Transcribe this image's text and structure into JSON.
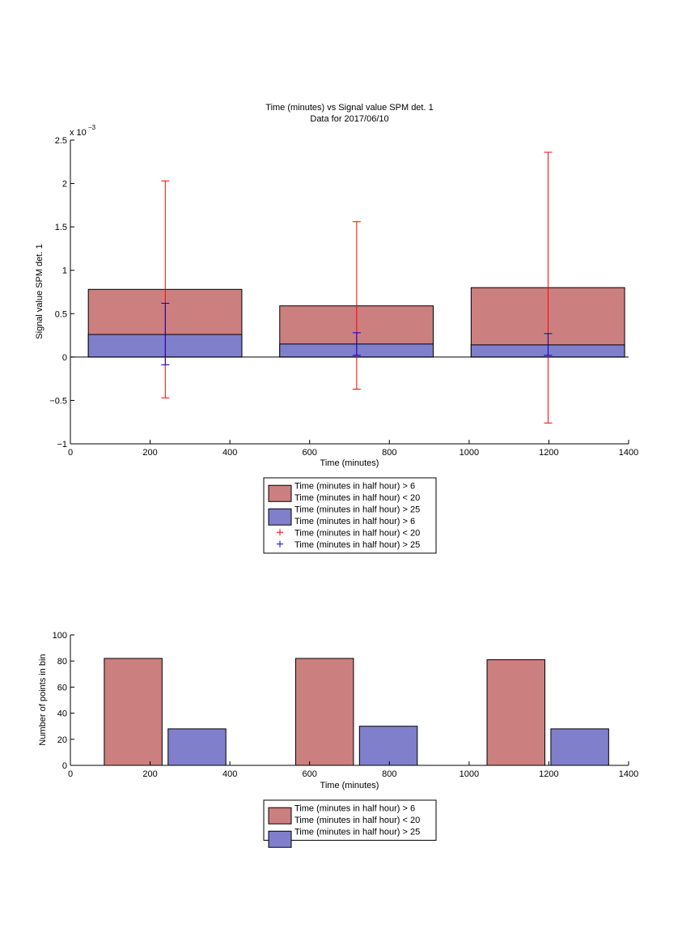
{
  "colors": {
    "red_bar": "#cc7f7f",
    "blue_bar": "#7f7fcc",
    "red_err": "#ff0000",
    "blue_err": "#0000cc",
    "axis": "#000000"
  },
  "chart_data": [
    {
      "type": "bar",
      "title": "Time (minutes) vs Signal value SPM det. 1",
      "subtitle": "Data for 2017/06/10",
      "xlabel": "Time (minutes)",
      "ylabel": "Signal value SPM det. 1",
      "y_exponent_label": "x 10",
      "y_exponent_power": "−3",
      "xlim": [
        0,
        1400
      ],
      "ylim": [
        -1,
        2.5
      ],
      "x_ticks": [
        0,
        200,
        400,
        600,
        800,
        1000,
        1200,
        1400
      ],
      "y_ticks": [
        -1,
        -0.5,
        0,
        0.5,
        1,
        1.5,
        2,
        2.5
      ],
      "y_tick_labels": [
        "−1",
        "−0.5",
        "0",
        "0.5",
        "1",
        "1.5",
        "2",
        "2.5"
      ],
      "bars": [
        {
          "x_start": 45,
          "x_end": 430,
          "red": 0.78,
          "blue": 0.26
        },
        {
          "x_start": 525,
          "x_end": 910,
          "red": 0.59,
          "blue": 0.15
        },
        {
          "x_start": 1005,
          "x_end": 1390,
          "red": 0.8,
          "blue": 0.14
        }
      ],
      "errorbars": [
        {
          "series": "red",
          "x": 238,
          "low": -0.47,
          "high": 2.03
        },
        {
          "series": "blue",
          "x": 238,
          "low": -0.09,
          "high": 0.62
        },
        {
          "series": "red",
          "x": 718,
          "low": -0.37,
          "high": 1.56
        },
        {
          "series": "blue",
          "x": 718,
          "low": 0.02,
          "high": 0.28
        },
        {
          "series": "red",
          "x": 1198,
          "low": -0.76,
          "high": 2.36
        },
        {
          "series": "blue",
          "x": 1198,
          "low": 0.02,
          "high": 0.27
        }
      ],
      "legend": {
        "placement": "below",
        "entries": [
          {
            "kind": "patch",
            "color": "red",
            "text": "Time (minutes in half hour) > 6"
          },
          {
            "kind": "none",
            "text": "Time (minutes in half hour) < 20"
          },
          {
            "kind": "patch",
            "color": "blue",
            "text": "Time (minutes in half hour) > 25"
          },
          {
            "kind": "none",
            "text": "Time (minutes in half hour) > 6"
          },
          {
            "kind": "marker",
            "color": "red",
            "text": "Time (minutes in half hour) < 20"
          },
          {
            "kind": "marker",
            "color": "blue",
            "text": "Time (minutes in half hour) > 25"
          }
        ]
      }
    },
    {
      "type": "bar",
      "xlabel": "Time (minutes)",
      "ylabel": "Number of points in bin",
      "xlim": [
        0,
        1400
      ],
      "ylim": [
        0,
        100
      ],
      "x_ticks": [
        0,
        200,
        400,
        600,
        800,
        1000,
        1200,
        1400
      ],
      "y_ticks": [
        0,
        20,
        40,
        60,
        80,
        100
      ],
      "y_tick_labels": [
        "0",
        "20",
        "40",
        "60",
        "80",
        "100"
      ],
      "bars": [
        {
          "series": "red",
          "x_start": 85,
          "x_end": 230,
          "value": 82
        },
        {
          "series": "blue",
          "x_start": 245,
          "x_end": 390,
          "value": 28
        },
        {
          "series": "red",
          "x_start": 565,
          "x_end": 710,
          "value": 82
        },
        {
          "series": "blue",
          "x_start": 725,
          "x_end": 870,
          "value": 30
        },
        {
          "series": "red",
          "x_start": 1045,
          "x_end": 1190,
          "value": 81
        },
        {
          "series": "blue",
          "x_start": 1205,
          "x_end": 1350,
          "value": 28
        }
      ],
      "legend": {
        "placement": "below",
        "entries": [
          {
            "kind": "patch",
            "color": "red",
            "text": "Time (minutes in half hour) > 6"
          },
          {
            "kind": "none",
            "text": "Time (minutes in half hour) < 20"
          },
          {
            "kind": "patch",
            "color": "blue",
            "text": "Time (minutes in half hour) > 25"
          }
        ]
      }
    }
  ]
}
